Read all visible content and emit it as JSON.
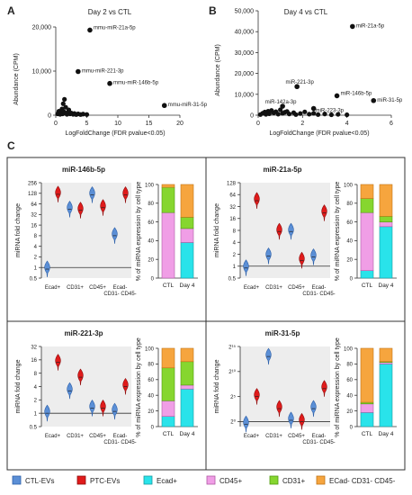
{
  "panels": {
    "A": "A",
    "B": "B",
    "C": "C"
  },
  "chart_data": [
    {
      "id": "A",
      "type": "scatter",
      "title": "Day 2 vs CTL",
      "xlabel": "LogFoldChange (FDR pvalue<0.05)",
      "ylabel": "Abundance (CPM)",
      "xlim": [
        0,
        20
      ],
      "ylim": [
        0,
        20000
      ],
      "xticks": [
        "0",
        "5",
        "10",
        "15",
        "20"
      ],
      "yticks": [
        "0",
        "10,000",
        "20,000"
      ],
      "points": [
        [
          0.3,
          300
        ],
        [
          0.5,
          900
        ],
        [
          0.7,
          200
        ],
        [
          0.9,
          600
        ],
        [
          1.0,
          1400
        ],
        [
          1.1,
          300
        ],
        [
          1.2,
          2600
        ],
        [
          1.3,
          800
        ],
        [
          1.4,
          3600
        ],
        [
          1.5,
          500
        ],
        [
          1.6,
          1800
        ],
        [
          1.8,
          200
        ],
        [
          2.0,
          700
        ],
        [
          2.1,
          1200
        ],
        [
          2.3,
          300
        ],
        [
          2.5,
          500
        ],
        [
          2.8,
          200
        ],
        [
          3.0,
          400
        ],
        [
          3.3,
          150
        ],
        [
          3.6,
          300
        ],
        [
          4.0,
          150
        ],
        [
          4.4,
          250
        ],
        [
          5.0,
          150
        ]
      ],
      "labeled": [
        {
          "x": 5.5,
          "y": 19300,
          "label": "mmu-miR-21a-5p"
        },
        {
          "x": 3.6,
          "y": 9900,
          "label": "mmu-miR-221-3p"
        },
        {
          "x": 8.7,
          "y": 7200,
          "label": "mmu-miR-146b-5p"
        },
        {
          "x": 17.5,
          "y": 2200,
          "label": "mmu-miR-31-5p"
        }
      ]
    },
    {
      "id": "B",
      "type": "scatter",
      "title": "Day 4 vs CTL",
      "xlabel": "LogFoldChange (FDR pvalue<0.05)",
      "ylabel": "Abundance (CPM)",
      "xlim": [
        0,
        6
      ],
      "ylim": [
        0,
        50000
      ],
      "xticks": [
        "0",
        "2",
        "4",
        "6"
      ],
      "yticks": [
        "0",
        "10,000",
        "20,000",
        "30,000",
        "40,000",
        "50,000"
      ],
      "points": [
        [
          0.1,
          300
        ],
        [
          0.2,
          900
        ],
        [
          0.3,
          1500
        ],
        [
          0.35,
          400
        ],
        [
          0.45,
          1900
        ],
        [
          0.5,
          700
        ],
        [
          0.6,
          2300
        ],
        [
          0.7,
          1100
        ],
        [
          0.8,
          1700
        ],
        [
          0.9,
          500
        ],
        [
          1.0,
          2600
        ],
        [
          1.1,
          900
        ],
        [
          1.2,
          1400
        ],
        [
          1.3,
          1800
        ],
        [
          1.4,
          600
        ],
        [
          1.6,
          1200
        ],
        [
          1.7,
          300
        ],
        [
          1.9,
          800
        ],
        [
          2.1,
          1600
        ],
        [
          2.3,
          500
        ],
        [
          2.5,
          900
        ],
        [
          2.7,
          300
        ],
        [
          3.0,
          600
        ],
        [
          3.3,
          200
        ],
        [
          3.6,
          400
        ],
        [
          4.0,
          200
        ]
      ],
      "labeled": [
        {
          "x": 4.25,
          "y": 42500,
          "label": "miR-21a-5p"
        },
        {
          "x": 1.75,
          "y": 13700,
          "label": "miR-221-3p"
        },
        {
          "x": 3.55,
          "y": 9300,
          "label": "miR-146b-5p"
        },
        {
          "x": 5.2,
          "y": 7000,
          "label": "miR-31-5p"
        },
        {
          "x": 1.1,
          "y": 4300,
          "label": "miR-142a-3p"
        },
        {
          "x": 2.5,
          "y": 3200,
          "label": "miR-223-3p"
        }
      ]
    },
    {
      "id": "C1",
      "title": "miR-146b-5p",
      "violin": {
        "type": "violin",
        "ylabel": "miRNA fold change",
        "scale": "log2",
        "ylim": [
          0.5,
          256
        ],
        "yticks": [
          "256",
          "128",
          "64",
          "32",
          "16",
          "8",
          "4",
          "2",
          "1",
          "0.5"
        ],
        "categories": [
          "Ecad+",
          "CD31+",
          "CD45+",
          "Ecad-\nCD31- CD45-"
        ],
        "series": [
          {
            "name": "CTL-EVs",
            "values": [
              0.9,
              45,
              115,
              8
            ]
          },
          {
            "name": "PTC-EVs",
            "values": [
              120,
              42,
              50,
              115
            ]
          }
        ]
      },
      "bars": {
        "type": "bar",
        "ylabel": "% of miRNA expression by cell type",
        "ylim": [
          0,
          100
        ],
        "yticks": [
          "100",
          "80",
          "60",
          "40",
          "20",
          "0"
        ],
        "categories": [
          "CTL",
          "Day 4"
        ],
        "series": [
          {
            "name": "Ecad+",
            "values": [
              0,
              38
            ]
          },
          {
            "name": "CD45+",
            "values": [
              70,
              15
            ]
          },
          {
            "name": "CD31+",
            "values": [
              27,
              12
            ]
          },
          {
            "name": "ECad- CD31- CD45-",
            "values": [
              3,
              35
            ]
          }
        ]
      }
    },
    {
      "id": "C2",
      "title": "miR-21a-5p",
      "violin": {
        "type": "violin",
        "ylabel": "miRNA fold change",
        "scale": "log2",
        "ylim": [
          0.5,
          128
        ],
        "yticks": [
          "128",
          "64",
          "32",
          "16",
          "8",
          "4",
          "2",
          "1",
          "0.5"
        ],
        "categories": [
          "Ecad+",
          "CD31+",
          "CD45+",
          "Ecad-\nCD31- CD45-"
        ],
        "series": [
          {
            "name": "CTL-EVs",
            "values": [
              0.9,
              1.8,
              7.5,
              1.7
            ]
          },
          {
            "name": "PTC-EVs",
            "values": [
              45,
              7.5,
              1.4,
              22
            ]
          }
        ]
      },
      "bars": {
        "type": "bar",
        "ylabel": "% of miRNA expression by cell type",
        "ylim": [
          0,
          100
        ],
        "yticks": [
          "100",
          "80",
          "60",
          "40",
          "20",
          "0"
        ],
        "categories": [
          "CTL",
          "Day 4"
        ],
        "series": [
          {
            "name": "Ecad+",
            "values": [
              8,
              55
            ]
          },
          {
            "name": "CD45+",
            "values": [
              62,
              5
            ]
          },
          {
            "name": "CD31+",
            "values": [
              15,
              6
            ]
          },
          {
            "name": "ECad- CD31- CD45-",
            "values": [
              15,
              34
            ]
          }
        ]
      }
    },
    {
      "id": "C3",
      "title": "miR-221-3p",
      "violin": {
        "type": "violin",
        "ylabel": "miRNA fold change",
        "scale": "log2",
        "ylim": [
          0.5,
          32
        ],
        "yticks": [
          "32",
          "16",
          "8",
          "4",
          "2",
          "1",
          "0.5"
        ],
        "categories": [
          "Ecad+",
          "CD31+",
          "CD45+",
          "Ecad-\nCD31- CD45-"
        ],
        "series": [
          {
            "name": "CTL-EVs",
            "values": [
              1.0,
              3.2,
              1.3,
              1.1
            ]
          },
          {
            "name": "PTC-EVs",
            "values": [
              14,
              6.5,
              1.3,
              4
            ]
          }
        ]
      },
      "bars": {
        "type": "bar",
        "ylabel": "% of miRNA expression by cell type",
        "ylim": [
          0,
          100
        ],
        "yticks": [
          "100",
          "80",
          "60",
          "40",
          "20",
          "0"
        ],
        "categories": [
          "CTL",
          "Day 4"
        ],
        "series": [
          {
            "name": "Ecad+",
            "values": [
              13,
              48
            ]
          },
          {
            "name": "CD45+",
            "values": [
              20,
              5
            ]
          },
          {
            "name": "CD31+",
            "values": [
              42,
              30
            ]
          },
          {
            "name": "ECad- CD31- CD45-",
            "values": [
              25,
              17
            ]
          }
        ]
      }
    },
    {
      "id": "C4",
      "title": "miR-31-5p",
      "violin": {
        "type": "violin",
        "ylabel": "miRNA fold change",
        "scale": "log2",
        "ylim": [
          0.5,
          32768
        ],
        "yticks": [
          "2¹⁵",
          "2¹⁰",
          "2⁵",
          "2⁰"
        ],
        "categories": [
          "Ecad+",
          "CD31+",
          "CD45+",
          "Ecad-\nCD31- CD45-"
        ],
        "series": [
          {
            "name": "CTL-EVs",
            "values": [
              0.7,
              8192,
              1.2,
              6
            ]
          },
          {
            "name": "PTC-EVs",
            "values": [
              32,
              6,
              1.0,
              96
            ]
          }
        ]
      },
      "bars": {
        "type": "bar",
        "ylabel": "% of miRNA expression by cell type",
        "ylim": [
          0,
          100
        ],
        "yticks": [
          "100",
          "80",
          "60",
          "40",
          "20",
          "0"
        ],
        "categories": [
          "CTL",
          "Day 4"
        ],
        "series": [
          {
            "name": "Ecad+",
            "values": [
              18,
              80
            ]
          },
          {
            "name": "CD45+",
            "values": [
              11,
              2
            ]
          },
          {
            "name": "CD31+",
            "values": [
              2,
              1
            ]
          },
          {
            "name": "ECad- CD31- CD45-",
            "values": [
              69,
              17
            ]
          }
        ]
      }
    }
  ],
  "legend": {
    "items": [
      {
        "label": "CTL-EVs",
        "color": "#5b8fd6",
        "stroke": "#2c5fa8"
      },
      {
        "label": "PTC-EVs",
        "color": "#e01b1b",
        "stroke": "#8e0d0d"
      },
      {
        "label": "Ecad+",
        "color": "#29e3ea",
        "stroke": "#1a9aa0"
      },
      {
        "label": "CD45+",
        "color": "#f09ee6",
        "stroke": "#b05aa4"
      },
      {
        "label": "CD31+",
        "color": "#86d62f",
        "stroke": "#4f9a10"
      },
      {
        "label": "ECad- CD31- CD45-",
        "color": "#f6a53e",
        "stroke": "#c07418"
      }
    ]
  },
  "colors": {
    "ctl_ev": "#5b8fd6",
    "ptc_ev": "#e01b1b",
    "ecad": "#29e3ea",
    "cd45": "#f09ee6",
    "cd31": "#86d62f",
    "neg": "#f6a53e"
  }
}
